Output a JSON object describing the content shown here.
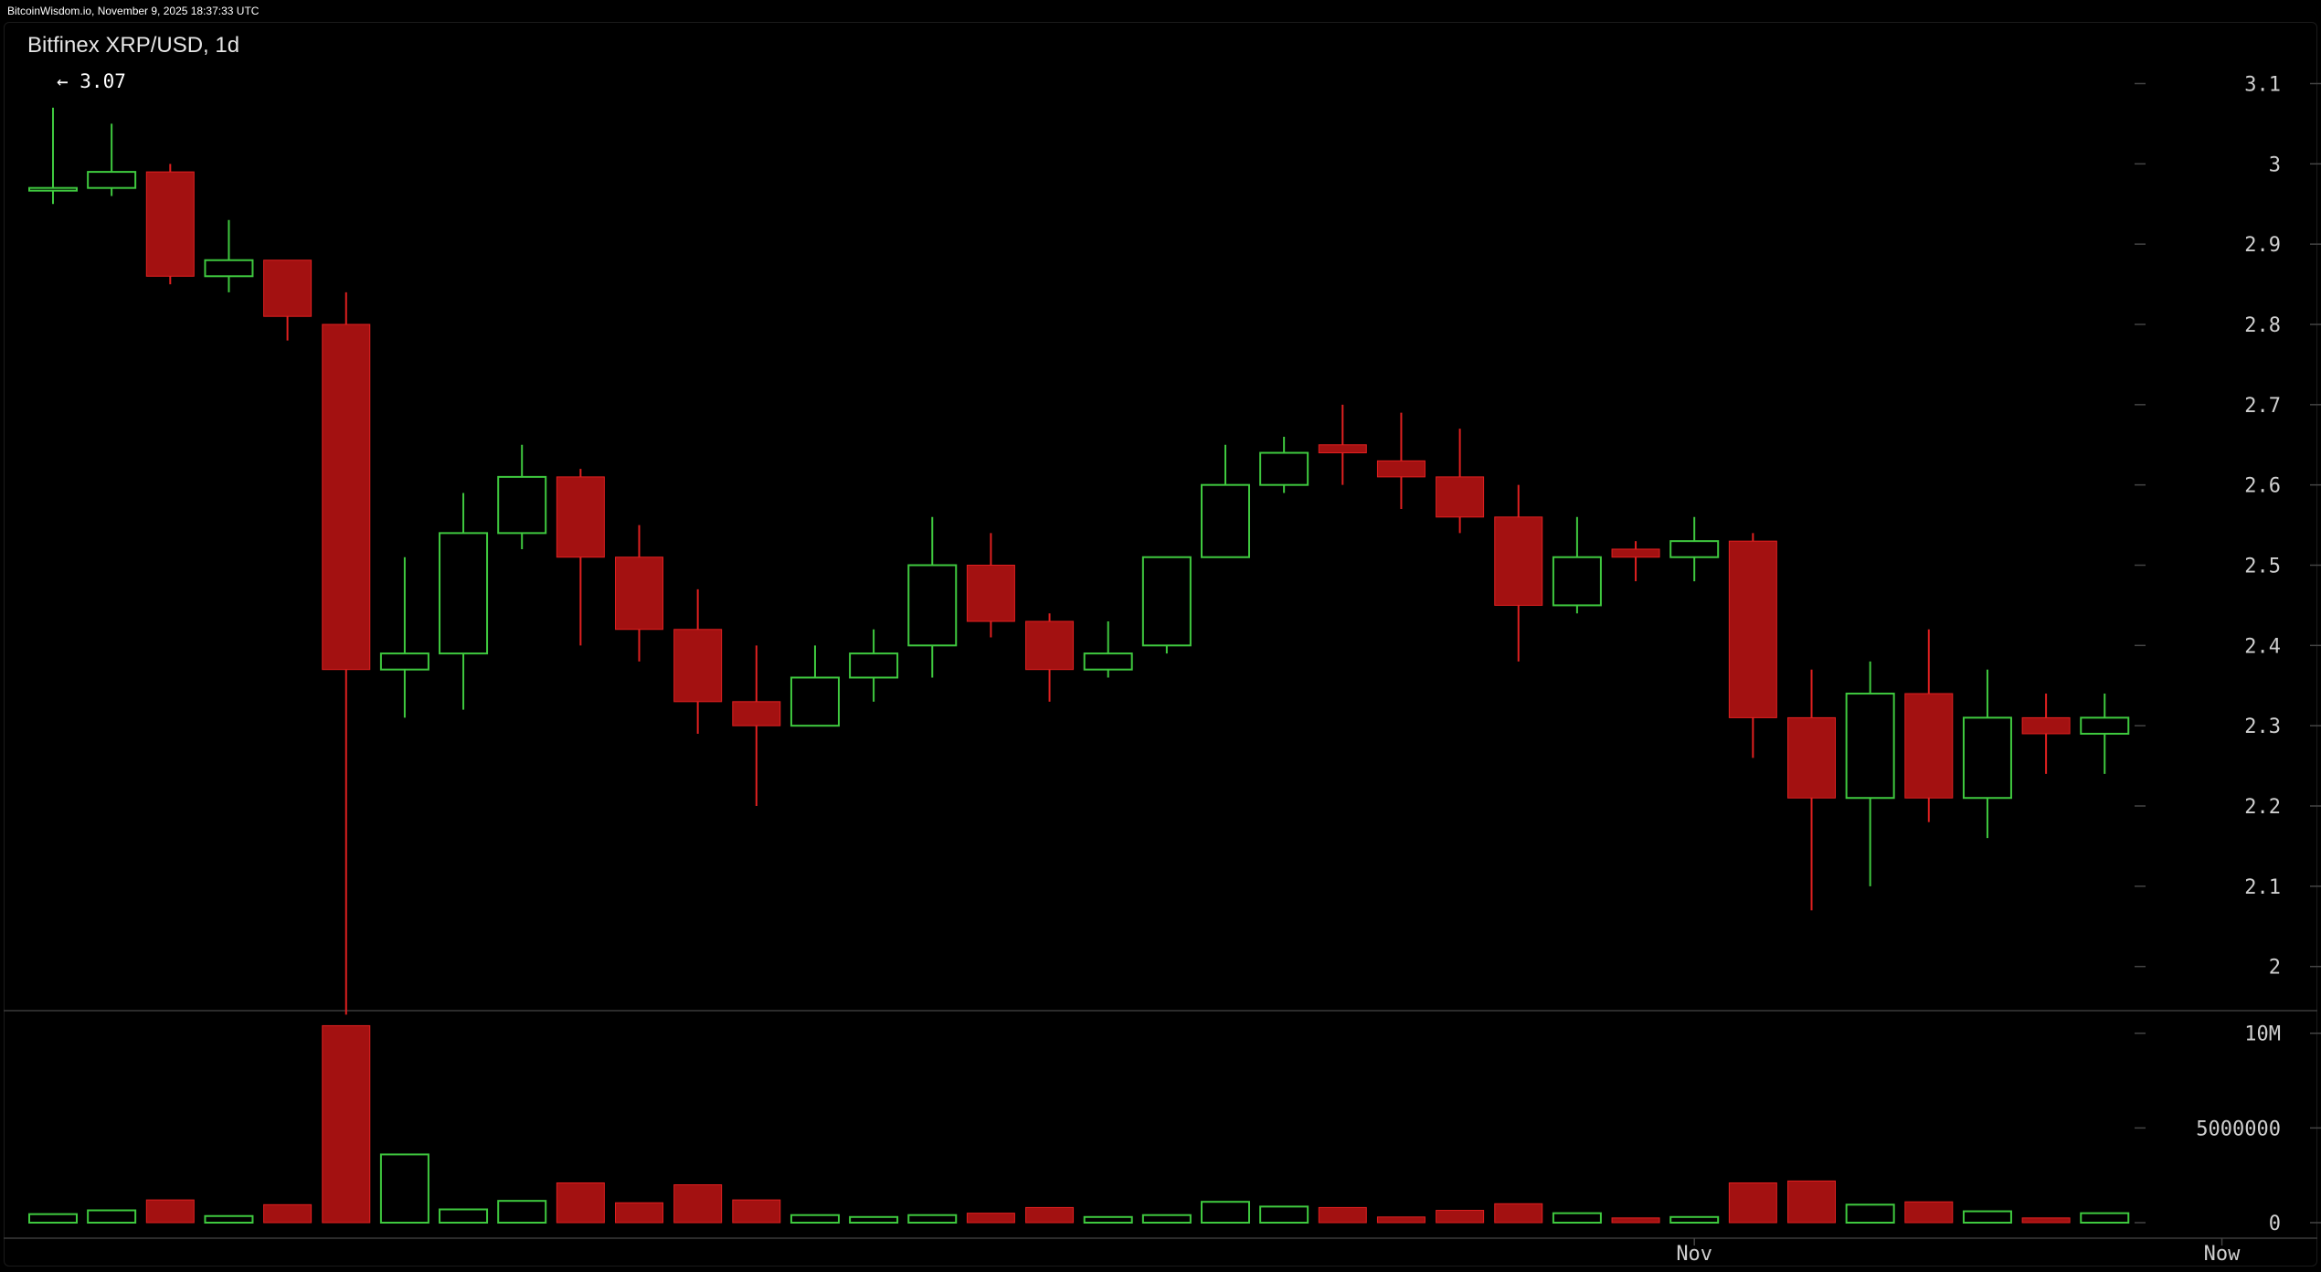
{
  "header": {
    "timestamp_text": "BitcoinWisdom.io, November 9, 2025 18:37:33 UTC"
  },
  "chart_data": {
    "type": "candlestick",
    "title": "Bitfinex XRP/USD, 1d",
    "max_annotation": "← 3.07",
    "price_axis": {
      "ticks": [
        "3.1",
        "3",
        "2.9",
        "2.8",
        "2.7",
        "2.6",
        "2.5",
        "2.4",
        "2.3",
        "2.2",
        "2.1",
        "2"
      ],
      "tick_values": [
        3.1,
        3.0,
        2.9,
        2.8,
        2.7,
        2.6,
        2.5,
        2.4,
        2.3,
        2.2,
        2.1,
        2.0
      ],
      "ylim": [
        1.945,
        3.17
      ]
    },
    "volume_axis": {
      "ticks": [
        "10M",
        "5000000",
        "0"
      ],
      "tick_values": [
        10000000,
        5000000,
        0
      ],
      "ylim": [
        0,
        11000000
      ]
    },
    "x_axis": {
      "labels": [
        {
          "text": "Nov",
          "index": 28
        },
        {
          "text": "Now",
          "index": 37
        }
      ]
    },
    "colors": {
      "up": "#3fc93f",
      "down": "#a31111",
      "down_border": "#e02020",
      "axis_text": "#cfcfcf",
      "grid_tick": "#444444",
      "separator": "#3a3a3a"
    },
    "candles": [
      {
        "o": 2.97,
        "h": 3.07,
        "l": 2.95,
        "c": 2.97,
        "v": 450000
      },
      {
        "o": 2.97,
        "h": 3.05,
        "l": 2.96,
        "c": 2.99,
        "v": 650000
      },
      {
        "o": 2.99,
        "h": 3.0,
        "l": 2.85,
        "c": 2.86,
        "v": 1200000
      },
      {
        "o": 2.86,
        "h": 2.93,
        "l": 2.84,
        "c": 2.88,
        "v": 350000
      },
      {
        "o": 2.88,
        "h": 2.88,
        "l": 2.78,
        "c": 2.81,
        "v": 950000
      },
      {
        "o": 2.8,
        "h": 2.84,
        "l": 1.94,
        "c": 2.37,
        "v": 10400000
      },
      {
        "o": 2.37,
        "h": 2.51,
        "l": 2.31,
        "c": 2.39,
        "v": 3600000
      },
      {
        "o": 2.39,
        "h": 2.59,
        "l": 2.32,
        "c": 2.54,
        "v": 700000
      },
      {
        "o": 2.54,
        "h": 2.65,
        "l": 2.52,
        "c": 2.61,
        "v": 1150000
      },
      {
        "o": 2.61,
        "h": 2.62,
        "l": 2.4,
        "c": 2.51,
        "v": 2100000
      },
      {
        "o": 2.51,
        "h": 2.55,
        "l": 2.38,
        "c": 2.42,
        "v": 1050000
      },
      {
        "o": 2.42,
        "h": 2.47,
        "l": 2.29,
        "c": 2.33,
        "v": 2000000
      },
      {
        "o": 2.33,
        "h": 2.4,
        "l": 2.2,
        "c": 2.3,
        "v": 1200000
      },
      {
        "o": 2.3,
        "h": 2.4,
        "l": 2.3,
        "c": 2.36,
        "v": 400000
      },
      {
        "o": 2.36,
        "h": 2.42,
        "l": 2.33,
        "c": 2.39,
        "v": 300000
      },
      {
        "o": 2.4,
        "h": 2.56,
        "l": 2.36,
        "c": 2.5,
        "v": 400000
      },
      {
        "o": 2.5,
        "h": 2.54,
        "l": 2.41,
        "c": 2.43,
        "v": 500000
      },
      {
        "o": 2.43,
        "h": 2.44,
        "l": 2.33,
        "c": 2.37,
        "v": 800000
      },
      {
        "o": 2.37,
        "h": 2.43,
        "l": 2.36,
        "c": 2.39,
        "v": 300000
      },
      {
        "o": 2.4,
        "h": 2.51,
        "l": 2.39,
        "c": 2.51,
        "v": 400000
      },
      {
        "o": 2.51,
        "h": 2.65,
        "l": 2.51,
        "c": 2.6,
        "v": 1100000
      },
      {
        "o": 2.6,
        "h": 2.66,
        "l": 2.59,
        "c": 2.64,
        "v": 850000
      },
      {
        "o": 2.65,
        "h": 2.7,
        "l": 2.6,
        "c": 2.64,
        "v": 800000
      },
      {
        "o": 2.63,
        "h": 2.69,
        "l": 2.57,
        "c": 2.61,
        "v": 300000
      },
      {
        "o": 2.61,
        "h": 2.67,
        "l": 2.54,
        "c": 2.56,
        "v": 650000
      },
      {
        "o": 2.56,
        "h": 2.6,
        "l": 2.38,
        "c": 2.45,
        "v": 1000000
      },
      {
        "o": 2.45,
        "h": 2.56,
        "l": 2.44,
        "c": 2.51,
        "v": 500000
      },
      {
        "o": 2.52,
        "h": 2.53,
        "l": 2.48,
        "c": 2.51,
        "v": 250000
      },
      {
        "o": 2.51,
        "h": 2.56,
        "l": 2.48,
        "c": 2.53,
        "v": 300000
      },
      {
        "o": 2.53,
        "h": 2.54,
        "l": 2.26,
        "c": 2.31,
        "v": 2100000
      },
      {
        "o": 2.31,
        "h": 2.37,
        "l": 2.07,
        "c": 2.21,
        "v": 2200000
      },
      {
        "o": 2.21,
        "h": 2.38,
        "l": 2.1,
        "c": 2.34,
        "v": 950000
      },
      {
        "o": 2.34,
        "h": 2.42,
        "l": 2.18,
        "c": 2.21,
        "v": 1100000
      },
      {
        "o": 2.21,
        "h": 2.37,
        "l": 2.16,
        "c": 2.31,
        "v": 600000
      },
      {
        "o": 2.31,
        "h": 2.34,
        "l": 2.24,
        "c": 2.29,
        "v": 250000
      },
      {
        "o": 2.29,
        "h": 2.34,
        "l": 2.24,
        "c": 2.31,
        "v": 500000
      }
    ]
  }
}
